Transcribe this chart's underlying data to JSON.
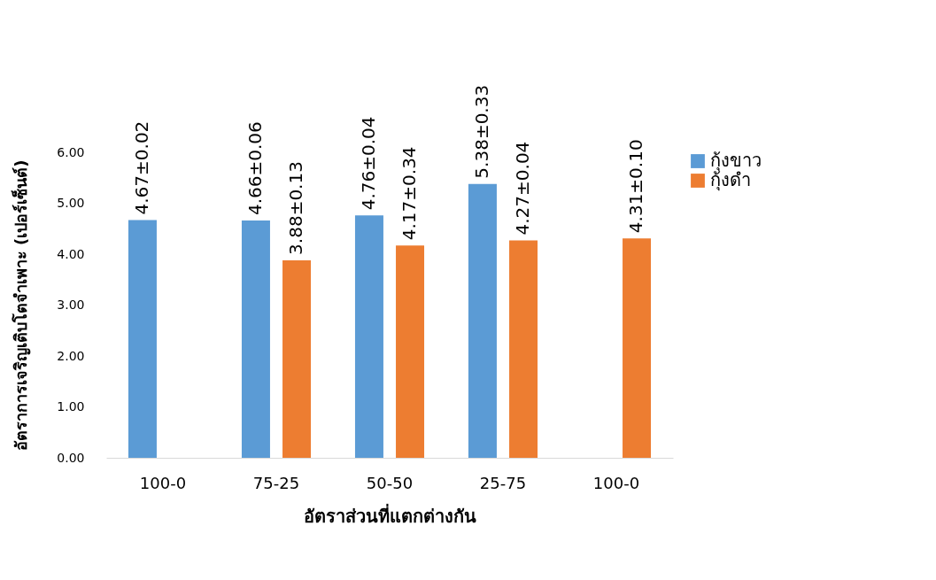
{
  "chart_data": {
    "type": "bar",
    "xlabel": "อัตราส่วนที่แตกต่างกัน",
    "ylabel": "อัตราการเจริญเติบโตจำเพาะ (เปอร์เซ็นต์)",
    "categories": [
      "100-0",
      "75-25",
      "50-50",
      "25-75",
      "100-0"
    ],
    "series": [
      {
        "name": "กุ้งขาว",
        "color": "#5b9bd5",
        "values": [
          4.67,
          4.66,
          4.76,
          5.38,
          null
        ],
        "value_labels": [
          "4.67±0.02",
          "4.66±0.06",
          "4.76±0.04",
          "5.38±0.33",
          null
        ]
      },
      {
        "name": "กุ้งดำ",
        "color": "#ed7d31",
        "values": [
          null,
          3.88,
          4.17,
          4.27,
          4.31
        ],
        "value_labels": [
          null,
          "3.88±0.13",
          "4.17±0.34",
          "4.27±0.04",
          "4.31±0.10"
        ]
      }
    ],
    "ylim": [
      0,
      6
    ],
    "yticks": [
      {
        "value": 0,
        "label": "0.00"
      },
      {
        "value": 1,
        "label": "1.00"
      },
      {
        "value": 2,
        "label": "2.00"
      },
      {
        "value": 3,
        "label": "3.00"
      },
      {
        "value": 4,
        "label": "4.00"
      },
      {
        "value": 5,
        "label": "5.00"
      },
      {
        "value": 6,
        "label": "6.00"
      }
    ],
    "grid": false,
    "legend": "right"
  }
}
